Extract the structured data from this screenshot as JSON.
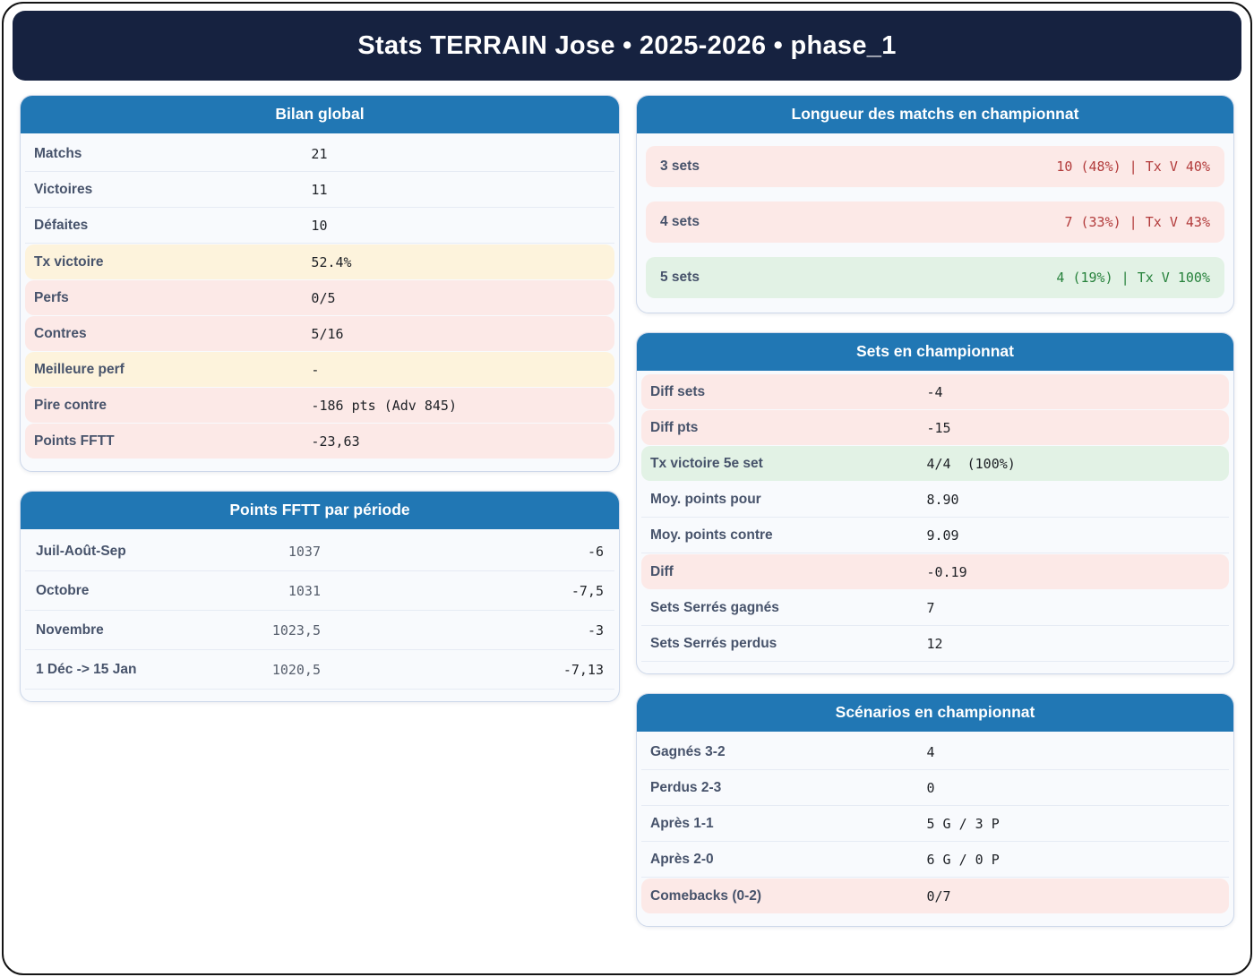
{
  "title": "Stats TERRAIN Jose • 2025-2026 • phase_1",
  "colors": {
    "banner_bg": "#162240",
    "card_header_bg": "#2177b4",
    "row_warn_bg": "#fdf3dc",
    "row_bad_bg": "#fce9e7",
    "row_good_bg": "#e2f2e5",
    "value_bad_text": "#b23b3b",
    "value_good_text": "#27823c"
  },
  "cards": {
    "bilan": {
      "title": "Bilan global",
      "rows": [
        {
          "label": "Matchs",
          "value": "21",
          "tone": "plain"
        },
        {
          "label": "Victoires",
          "value": "11",
          "tone": "plain"
        },
        {
          "label": "Défaites",
          "value": "10",
          "tone": "plain"
        },
        {
          "label": "Tx victoire",
          "value": "52.4%",
          "tone": "warn"
        },
        {
          "label": "Perfs",
          "value": "0/5",
          "tone": "bad"
        },
        {
          "label": "Contres",
          "value": "5/16",
          "tone": "bad"
        },
        {
          "label": "Meilleure perf",
          "value": "-",
          "tone": "warn"
        },
        {
          "label": "Pire contre",
          "value": "-186 pts (Adv 845)",
          "tone": "bad"
        },
        {
          "label": "Points FFTT",
          "value": "-23,63",
          "tone": "bad"
        }
      ]
    },
    "periodes": {
      "title": "Points FFTT par période",
      "rows": [
        {
          "label": "Juil-Août-Sep",
          "points": "1037",
          "delta": "-6"
        },
        {
          "label": "Octobre",
          "points": "1031",
          "delta": "-7,5"
        },
        {
          "label": "Novembre",
          "points": "1023,5",
          "delta": "-3"
        },
        {
          "label": "1 Déc -> 15 Jan",
          "points": "1020,5",
          "delta": "-7,13"
        }
      ]
    },
    "longueur": {
      "title": "Longueur des matchs en championnat",
      "rows": [
        {
          "label": "3 sets",
          "value": "10 (48%) | Tx V 40%",
          "tone": "bad"
        },
        {
          "label": "4 sets",
          "value": "7 (33%) | Tx V 43%",
          "tone": "bad"
        },
        {
          "label": "5 sets",
          "value": "4 (19%) | Tx V 100%",
          "tone": "good"
        }
      ]
    },
    "sets": {
      "title": "Sets en championnat",
      "rows": [
        {
          "label": "Diff sets",
          "value": "-4",
          "tone": "bad"
        },
        {
          "label": "Diff pts",
          "value": "-15",
          "tone": "bad"
        },
        {
          "label": "Tx victoire 5e set",
          "value": "4/4  (100%)",
          "tone": "good"
        },
        {
          "label": "Moy. points pour",
          "value": "8.90",
          "tone": "plain"
        },
        {
          "label": "Moy. points contre",
          "value": "9.09",
          "tone": "plain"
        },
        {
          "label": "Diff",
          "value": "-0.19",
          "tone": "bad"
        },
        {
          "label": "Sets Serrés gagnés",
          "value": "7",
          "tone": "plain"
        },
        {
          "label": "Sets Serrés perdus",
          "value": "12",
          "tone": "plain"
        }
      ]
    },
    "scenarios": {
      "title": "Scénarios en championnat",
      "rows": [
        {
          "label": "Gagnés 3-2",
          "value": "4",
          "tone": "plain"
        },
        {
          "label": "Perdus 2-3",
          "value": "0",
          "tone": "plain"
        },
        {
          "label": "Après 1-1",
          "value": "5 G / 3 P",
          "tone": "plain"
        },
        {
          "label": "Après 2-0",
          "value": "6 G / 0 P",
          "tone": "plain"
        },
        {
          "label": "Comebacks (0-2)",
          "value": "0/7",
          "tone": "bad"
        }
      ]
    }
  }
}
